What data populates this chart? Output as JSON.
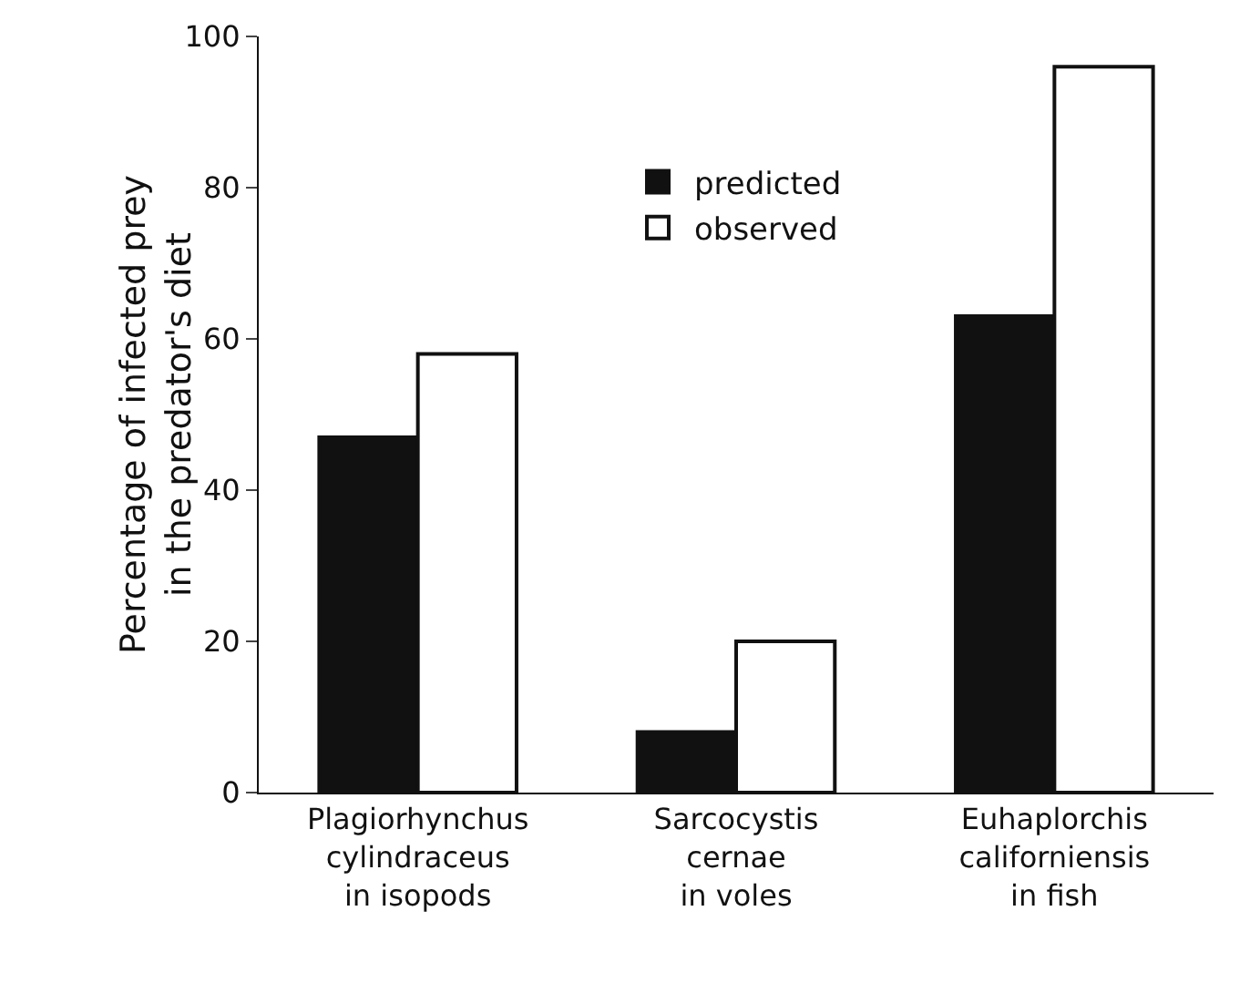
{
  "chart_data": {
    "type": "bar",
    "ylabel": "Percentage of infected prey\nin the predator's diet",
    "categories": [
      "Plagiorhynchus\ncylindraceus\nin isopods",
      "Sarcocystis\ncernae\nin voles",
      "Euhaplorchis\ncaliforniensis\nin fish"
    ],
    "series": [
      {
        "name": "predicted",
        "color": "#111111",
        "values": [
          47,
          8,
          63
        ]
      },
      {
        "name": "observed",
        "color": "#ffffff",
        "values": [
          58,
          20,
          96
        ]
      }
    ],
    "ylim": [
      0,
      100
    ],
    "yticks": [
      0,
      20,
      40,
      60,
      80,
      100
    ],
    "grid": false,
    "legend": "top"
  }
}
